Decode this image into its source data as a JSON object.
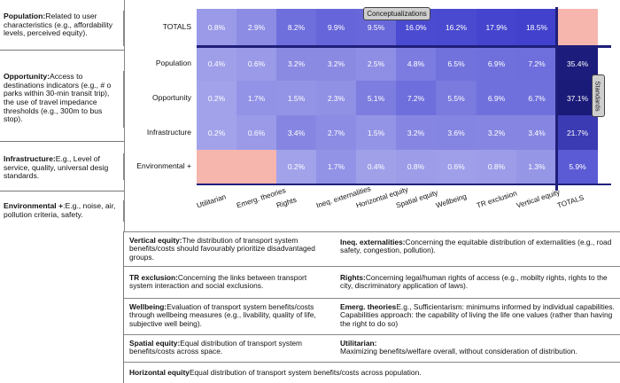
{
  "definitions": [
    {
      "term": "Population:",
      "text": "Related to user characteristics (e.g., affordability levels, perceived equity)."
    },
    {
      "term": "Opportunity:",
      "text": "Access to destinations indicators (e.g., # o parks within 30-min transit trip), the use of travel impedance thresholds (e.g., 300m to bus stop)."
    },
    {
      "term": "Infrastructure:",
      "text": "E.g., Level of service, quality, universal desig standards."
    },
    {
      "term": "Environmental +",
      "text": ":E.g., noise, air, pollution criteria, safety."
    }
  ],
  "matrix": {
    "rows": [
      "TOTALS",
      "Population",
      "Opportunity",
      "Infrastructure",
      "Environmental +"
    ],
    "columns": [
      "Utilitarian",
      "Emerg. theories",
      "Rights",
      "Ineq. externalities",
      "Horizontal equity",
      "Spatial equity",
      "Wellbeing",
      "TR exclusion",
      "Vertical equity",
      "TOTALS"
    ],
    "values": [
      [
        "0.8%",
        "2.9%",
        "8.2%",
        "9.9%",
        "9.5%",
        "16.0%",
        "16.2%",
        "17.9%",
        "18.5%",
        ""
      ],
      [
        "0.4%",
        "0.6%",
        "3.2%",
        "3.2%",
        "2.5%",
        "4.8%",
        "6.5%",
        "6.9%",
        "7.2%",
        "35.4%"
      ],
      [
        "0.2%",
        "1.7%",
        "1.5%",
        "2.3%",
        "5.1%",
        "7.2%",
        "5.5%",
        "6.9%",
        "6.7%",
        "37.1%"
      ],
      [
        "0.2%",
        "0.6%",
        "3.4%",
        "2.7%",
        "1.5%",
        "3.2%",
        "3.6%",
        "3.2%",
        "3.4%",
        "21.7%"
      ],
      [
        "",
        "",
        "0.2%",
        "1.7%",
        "0.4%",
        "0.8%",
        "0.6%",
        "0.8%",
        "1.3%",
        "5.9%"
      ]
    ],
    "colors": [
      [
        "#9a9ae8",
        "#8c8ce4",
        "#6e6edc",
        "#6666da",
        "#6868da",
        "#4b4bd1",
        "#4a4ad0",
        "#4444ce",
        "#4141cd",
        "#f6b5ad"
      ],
      [
        "#9e9ee9",
        "#9a9ae8",
        "#8a8ae3",
        "#8a8ae3",
        "#8e8ee5",
        "#7c7ce0",
        "#7272dd",
        "#7070dd",
        "#6e6edc",
        "#1c1c7c"
      ],
      [
        "#a2a2ea",
        "#9292e6",
        "#9494e6",
        "#9090e5",
        "#7d7de0",
        "#6e6edc",
        "#7a7adf",
        "#7070dd",
        "#7070dd",
        "#1a1a78"
      ],
      [
        "#a2a2ea",
        "#9a9ae8",
        "#8686e2",
        "#8c8ce4",
        "#9494e6",
        "#8686e2",
        "#8484e2",
        "#8686e2",
        "#8686e2",
        "#3b3bb3"
      ],
      [
        "#f6b5ad",
        "#f6b5ad",
        "#a2a2ea",
        "#9292e6",
        "#a0a0e9",
        "#9c9ce8",
        "#9e9ee9",
        "#9c9ce8",
        "#9696e7",
        "#5b5bd5"
      ]
    ],
    "tag_top": "Conceptualizations",
    "tag_side": "Standards"
  },
  "legend": [
    {
      "term": "Vertical equity:",
      "text": "The distribution of transport system benefits/costs should favourably prioritize disadvantaged groups."
    },
    {
      "term": "Ineq. externalities:",
      "text": "Concerning the equitable distribution of externalities (e.g., road safety, congestion, pollution)."
    },
    {
      "term": "TR exclusion:",
      "text": "Concerning the links between transport system interaction and social exclusions."
    },
    {
      "term": "Rights:",
      "text": "Concerning legal/human rights of access (e.g., mobilty rights, rights to the city, discriminatory application of laws)."
    },
    {
      "term": "Wellbeing:",
      "text": "Evaluation of transport system benefits/costs through wellbeing measures (e.g., livability, quality of life, subjective well being)."
    },
    {
      "term": "Emerg. theories",
      "text": "E.g., Sufficientarism: minimums informed by individual capabilities. Capabilities approach: the capability of living the life one values (rather than having the right to do so)"
    },
    {
      "term": "Spatial equity:",
      "text": "Equal distribution of transport system benefits/costs across space."
    },
    {
      "term": "Utilitarian:",
      "text": "Maximizing benefits/welfare overall, without consideration of distribution."
    },
    {
      "term": "Horizontal equity",
      "text": "Equal distribution of transport system benefits/costs across population."
    }
  ]
}
